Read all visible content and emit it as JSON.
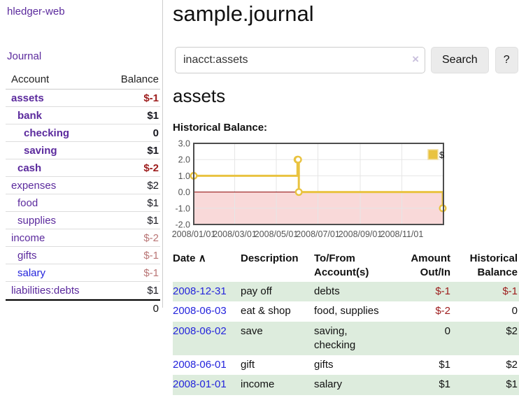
{
  "app": {
    "brand": "hledger-web",
    "nav_journal": "Journal"
  },
  "sidebar": {
    "header": {
      "account": "Account",
      "balance": "Balance"
    },
    "accounts": [
      {
        "name": "assets",
        "balance": "$-1",
        "depth": 0,
        "bold": true,
        "neg": true
      },
      {
        "name": "bank",
        "balance": "$1",
        "depth": 1,
        "bold": true
      },
      {
        "name": "checking",
        "balance": "0",
        "depth": 2,
        "bold": true
      },
      {
        "name": "saving",
        "balance": "$1",
        "depth": 2,
        "bold": true
      },
      {
        "name": "cash",
        "balance": "$-2",
        "depth": 1,
        "bold": true,
        "neg": true
      },
      {
        "name": "expenses",
        "balance": "$2",
        "depth": 0
      },
      {
        "name": "food",
        "balance": "$1",
        "depth": 1
      },
      {
        "name": "supplies",
        "balance": "$1",
        "depth": 1
      },
      {
        "name": "income",
        "balance": "$-2",
        "depth": 0,
        "mutedneg": true
      },
      {
        "name": "gifts",
        "balance": "$-1",
        "depth": 1,
        "mutedneg": true
      },
      {
        "name": "salary",
        "balance": "$-1",
        "depth": 1,
        "mutedneg": true,
        "blue": true
      },
      {
        "name": "liabilities:debts",
        "balance": "$1",
        "depth": 0
      }
    ],
    "total": "0"
  },
  "main": {
    "title": "sample.journal",
    "search": {
      "value": "inacct:assets",
      "clear_icon": "×",
      "button": "Search",
      "help_button": "?"
    },
    "account_heading": "assets",
    "chart_label": "Historical Balance:"
  },
  "chart_data": {
    "type": "line",
    "title": "Historical Balance:",
    "step": true,
    "series": [
      {
        "name": "$",
        "color": "#e9c340",
        "points": [
          [
            "2008-01-01",
            1
          ],
          [
            "2008-06-01",
            2
          ],
          [
            "2008-06-02",
            2
          ],
          [
            "2008-06-03",
            0
          ],
          [
            "2008-12-31",
            -1
          ]
        ]
      }
    ],
    "xrange": [
      "2008-01-01",
      "2009-01-01"
    ],
    "ylim": [
      -2,
      3
    ],
    "yticks": [
      3.0,
      2.0,
      1.0,
      0.0,
      -1.0,
      -2.0
    ],
    "xticks": [
      "2008/01/01",
      "2008/03/01",
      "2008/05/01",
      "2008/07/01",
      "2008/09/01",
      "2008/11/01"
    ],
    "grid": true,
    "zero_line_color": "#8b0000",
    "negative_region_color": "#f9d9d9",
    "legend_position": "top-right",
    "legend_label": "$"
  },
  "register": {
    "columns": {
      "date": "Date",
      "sort_icon": "∧",
      "description": "Description",
      "accounts_line1": "To/From",
      "accounts_line2": "Account(s)",
      "amount_line1": "Amount",
      "amount_line2": "Out/In",
      "balance_line1": "Historical",
      "balance_line2": "Balance"
    },
    "rows": [
      {
        "date": "2008-12-31",
        "description": "pay off",
        "accounts": "debts",
        "amount": "$-1",
        "balance": "$-1",
        "amount_neg": true,
        "balance_neg": true
      },
      {
        "date": "2008-06-03",
        "description": "eat & shop",
        "accounts": "food, supplies",
        "amount": "$-2",
        "balance": "0",
        "amount_neg": true
      },
      {
        "date": "2008-06-02",
        "description": "save",
        "accounts": "saving, checking",
        "amount": "0",
        "balance": "$2"
      },
      {
        "date": "2008-06-01",
        "description": "gift",
        "accounts": "gifts",
        "amount": "$1",
        "balance": "$2"
      },
      {
        "date": "2008-01-01",
        "description": "income",
        "accounts": "salary",
        "amount": "$1",
        "balance": "$1"
      }
    ]
  }
}
